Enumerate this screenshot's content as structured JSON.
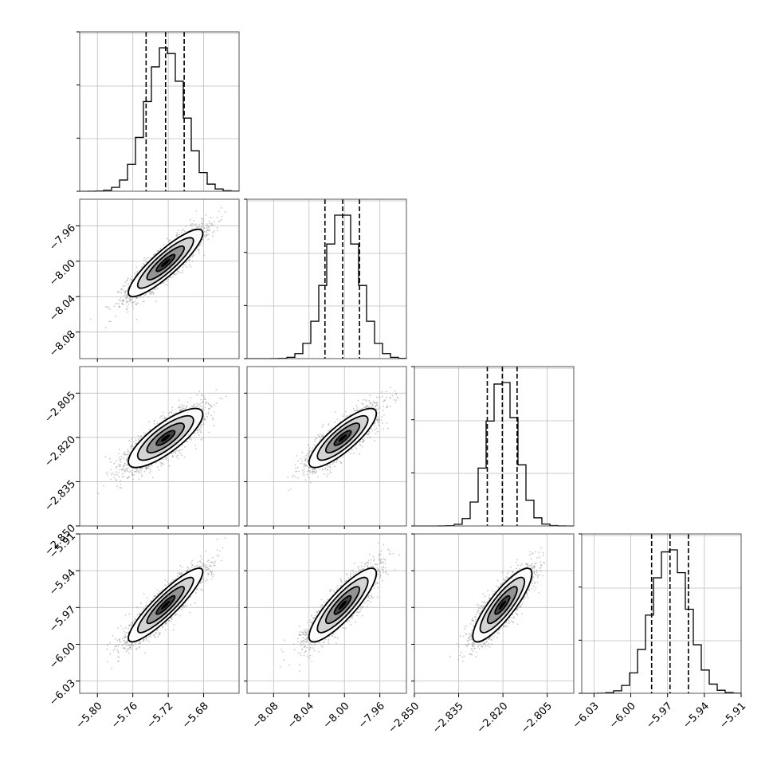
{
  "chart_data": {
    "type": "corner",
    "parameters": [
      {
        "median": -5.723,
        "q16": -5.745,
        "q84": -5.702,
        "sigma": 0.021,
        "range": [
          -5.82,
          -5.64
        ],
        "ticks": [
          "−5.80",
          "−5.76",
          "−5.72",
          "−5.68"
        ],
        "tick_values": [
          -5.8,
          -5.76,
          -5.72,
          -5.68
        ]
      },
      {
        "median": -8.002,
        "q16": -8.022,
        "q84": -7.983,
        "sigma": 0.019,
        "range": [
          -8.11,
          -7.93
        ],
        "ticks": [
          "−8.08",
          "−8.04",
          "−8.00",
          "−7.96"
        ],
        "tick_values": [
          -8.08,
          -8.04,
          -8.0,
          -7.96
        ]
      },
      {
        "median": -2.8202,
        "q16": -2.8253,
        "q84": -2.8152,
        "sigma": 0.005,
        "range": [
          -2.85,
          -2.796
        ],
        "ticks": [
          "−2.850",
          "−2.835",
          "−2.820",
          "−2.805"
        ],
        "tick_values": [
          -2.85,
          -2.835,
          -2.82,
          -2.805
        ]
      },
      {
        "median": -5.968,
        "q16": -5.983,
        "q84": -5.953,
        "sigma": 0.015,
        "range": [
          -6.04,
          -5.91
        ],
        "ticks": [
          "−6.03",
          "−6.00",
          "−5.97",
          "−5.94",
          "−5.91"
        ],
        "tick_values": [
          -6.03,
          -6.0,
          -5.97,
          -5.94,
          -5.91
        ]
      }
    ],
    "correlation": [
      [
        1.0,
        0.88,
        0.8,
        0.9
      ],
      [
        0.88,
        1.0,
        0.83,
        0.86
      ],
      [
        0.8,
        0.83,
        1.0,
        0.85
      ],
      [
        0.9,
        0.86,
        0.85,
        1.0
      ]
    ],
    "quantile_lines": "dashed at 16th, 50th, 84th percentiles",
    "grid": true,
    "contour_levels_sigma": [
      0.5,
      1.0,
      1.5,
      2.0
    ]
  }
}
